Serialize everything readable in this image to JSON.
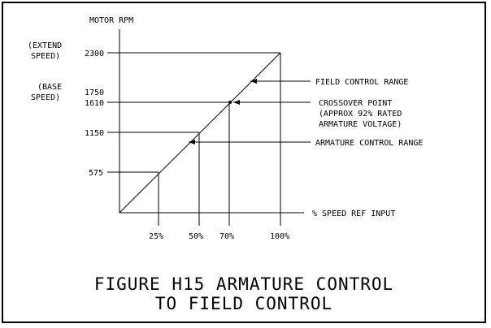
{
  "y_axis_title": "MOTOR RPM",
  "x_axis_title": "% SPEED REF INPUT",
  "extend_speed_label": [
    "(EXTEND",
    "SPEED)"
  ],
  "base_speed_label": [
    "(BASE",
    "SPEED)"
  ],
  "y_ticks": [
    {
      "label": "2300",
      "rpm": 2300
    },
    {
      "label": "1750",
      "rpm": 1750
    },
    {
      "label": "1610",
      "rpm": 1610
    },
    {
      "label": "1150",
      "rpm": 1150
    },
    {
      "label": "575",
      "rpm": 575
    }
  ],
  "x_ticks": [
    {
      "label": "25%",
      "pct": 25
    },
    {
      "label": "50%",
      "pct": 50
    },
    {
      "label": "70%",
      "pct": 70
    },
    {
      "label": "100%",
      "pct": 100
    }
  ],
  "annotations": {
    "field_control": "FIELD CONTROL RANGE",
    "crossover": [
      "CROSSOVER POINT",
      "(APPROX 92% RATED",
      "ARMATURE VOLTAGE)"
    ],
    "armature_control": "ARMATURE CONTROL RANGE"
  },
  "caption": [
    "FIGURE H15 ARMATURE CONTROL",
    "TO FIELD CONTROL"
  ]
}
